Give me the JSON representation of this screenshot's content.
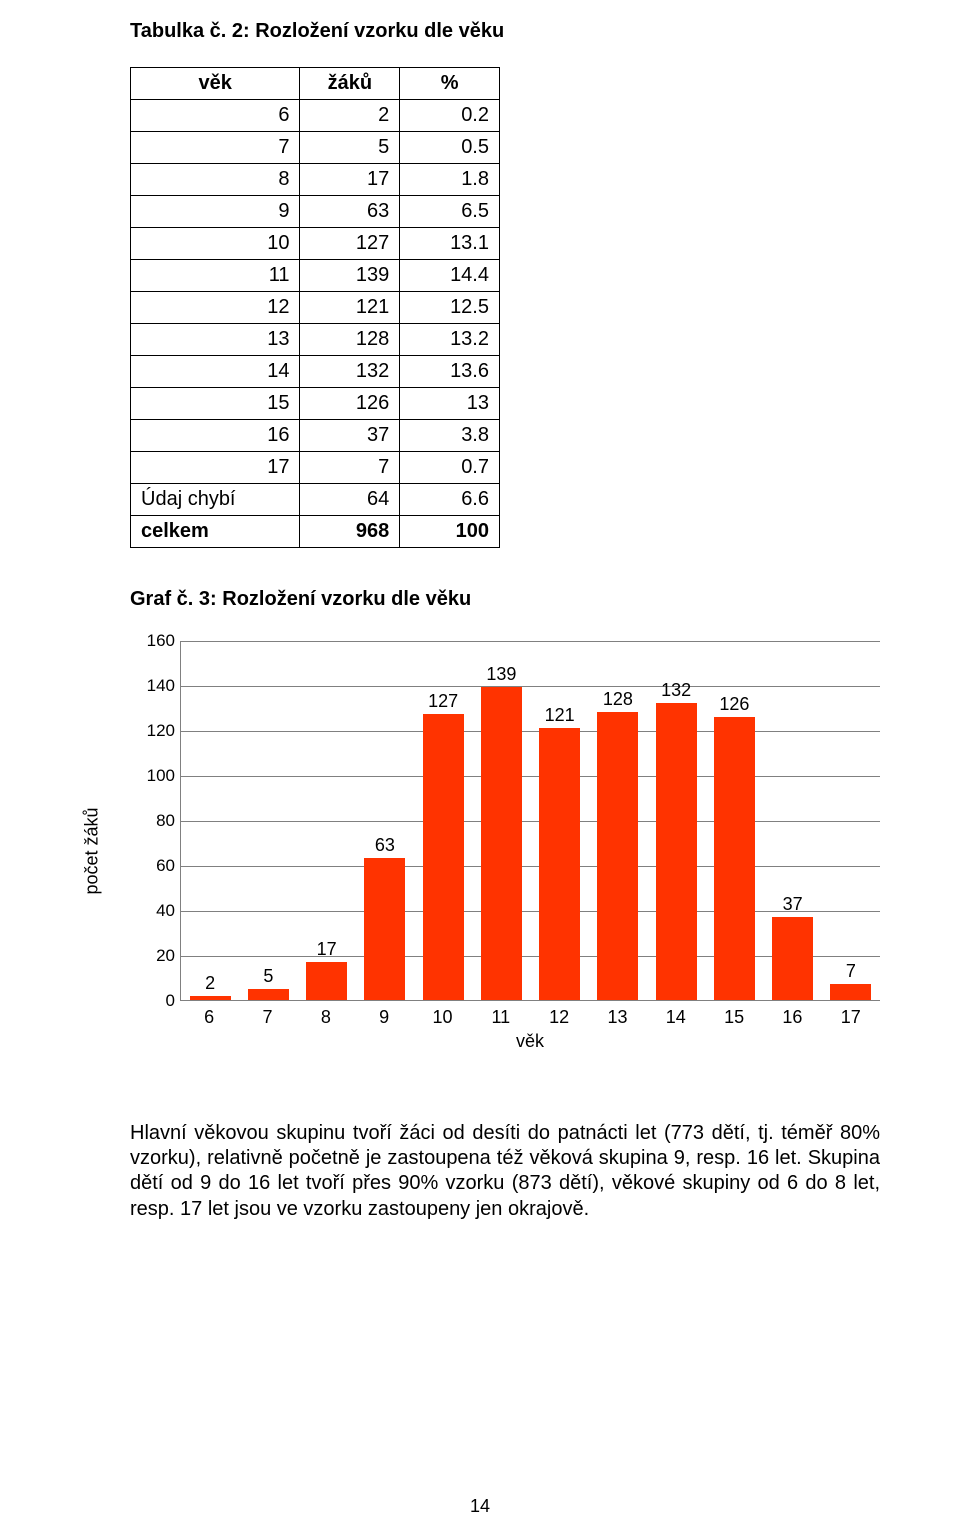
{
  "table": {
    "title": "Tabulka č. 2: Rozložení vzorku dle věku",
    "columns": [
      "věk",
      "žáků",
      "%"
    ],
    "rows": [
      [
        "6",
        "2",
        "0.2"
      ],
      [
        "7",
        "5",
        "0.5"
      ],
      [
        "8",
        "17",
        "1.8"
      ],
      [
        "9",
        "63",
        "6.5"
      ],
      [
        "10",
        "127",
        "13.1"
      ],
      [
        "11",
        "139",
        "14.4"
      ],
      [
        "12",
        "121",
        "12.5"
      ],
      [
        "13",
        "128",
        "13.2"
      ],
      [
        "14",
        "132",
        "13.6"
      ],
      [
        "15",
        "126",
        "13"
      ],
      [
        "16",
        "37",
        "3.8"
      ],
      [
        "17",
        "7",
        "0.7"
      ],
      [
        "Údaj chybí",
        "64",
        "6.6"
      ],
      [
        "celkem",
        "968",
        "100"
      ]
    ],
    "total_row_index": 13
  },
  "chart": {
    "title": "Graf č. 3: Rozložení vzorku dle věku",
    "type": "bar",
    "ylabel": "počet žáků",
    "xlabel": "věk",
    "ylim": [
      0,
      160
    ],
    "ytick_step": 20,
    "categories": [
      "6",
      "7",
      "8",
      "9",
      "10",
      "11",
      "12",
      "13",
      "14",
      "15",
      "16",
      "17"
    ],
    "values": [
      2,
      5,
      17,
      63,
      127,
      139,
      121,
      128,
      132,
      126,
      37,
      7
    ],
    "bar_color": "#ff3300",
    "grid_color": "#808080",
    "background_color": "#ffffff",
    "label_fontsize": 18,
    "val_fontsize": 18
  },
  "paragraph": "Hlavní věkovou skupinu tvoří žáci od desíti do patnácti let (773 dětí, tj. téměř 80% vzorku), relativně početně je zastoupena též věková skupina 9, resp. 16 let. Skupina dětí od 9 do 16 let tvoří přes 90% vzorku (873 dětí), věkové skupiny od 6 do 8 let, resp. 17 let jsou ve vzorku zastoupeny jen okrajově.",
  "page_number": "14"
}
